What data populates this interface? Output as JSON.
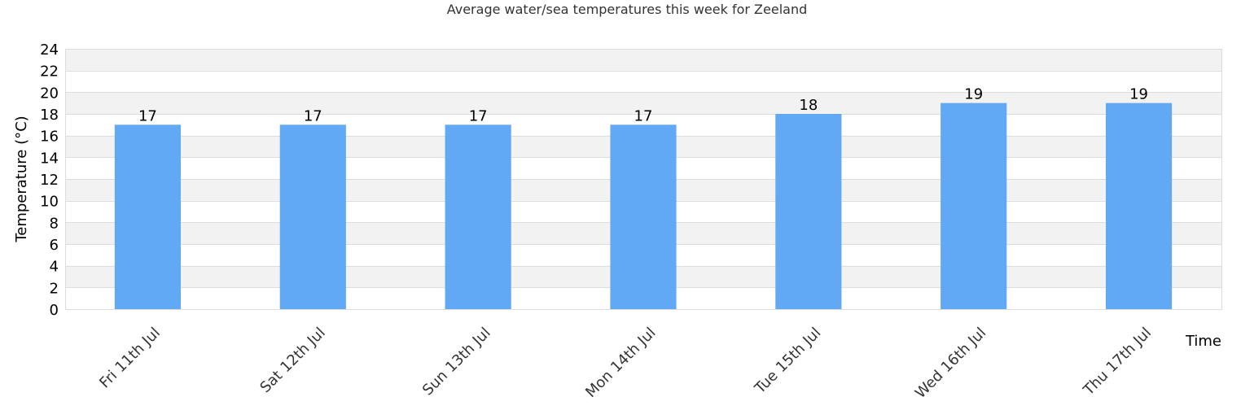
{
  "chart_data": {
    "type": "bar",
    "title": "Average water/sea temperatures this week for Zeeland",
    "xlabel": "Time",
    "ylabel": "Temperature (°C)",
    "categories": [
      "Fri 11th Jul",
      "Sat 12th Jul",
      "Sun 13th Jul",
      "Mon 14th Jul",
      "Tue 15th Jul",
      "Wed 16th Jul",
      "Thu 17th Jul"
    ],
    "values": [
      17,
      17,
      17,
      17,
      18,
      19,
      19
    ],
    "data_labels": [
      "17",
      "17",
      "17",
      "17",
      "18",
      "19",
      "19"
    ],
    "ylim": [
      0,
      24
    ],
    "yticks": [
      0,
      2,
      4,
      6,
      8,
      10,
      12,
      14,
      16,
      18,
      20,
      22,
      24
    ],
    "grid": true,
    "legend": "none",
    "colors": {
      "bar": "#61a8f5",
      "band_alt": "#f2f2f2",
      "band": "#ffffff",
      "gridline": "#dddddd",
      "text": "#000000",
      "axis_text": "#333333"
    }
  }
}
